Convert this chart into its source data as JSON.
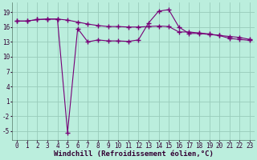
{
  "bg_color": "#bbeedd",
  "grid_color": "#99ccbb",
  "line_color": "#770077",
  "marker": "+",
  "marker_size": 4,
  "marker_lw": 1.0,
  "xlabel": "Windchill (Refroidissement éolien,°C)",
  "xlabel_fontsize": 6.5,
  "ytick_labels": [
    "-5",
    "-2",
    "1",
    "4",
    "7",
    "10",
    "13",
    "16",
    "19"
  ],
  "ytick_values": [
    -5,
    -2,
    1,
    4,
    7,
    10,
    13,
    16,
    19
  ],
  "xtick_values": [
    0,
    1,
    2,
    3,
    4,
    5,
    6,
    7,
    8,
    9,
    10,
    11,
    12,
    13,
    14,
    15,
    16,
    17,
    18,
    19,
    20,
    21,
    22,
    23
  ],
  "ylim": [
    -6.8,
    21.0
  ],
  "xlim": [
    -0.5,
    23.5
  ],
  "line1_x": [
    0,
    1,
    2,
    3,
    4,
    5,
    6,
    7,
    8,
    9,
    10,
    11,
    12,
    13,
    14,
    15,
    16,
    17,
    18,
    19,
    20,
    21,
    22,
    23
  ],
  "line1_y": [
    17.2,
    17.2,
    17.5,
    17.6,
    17.6,
    17.4,
    17.0,
    16.6,
    16.3,
    16.1,
    16.1,
    16.0,
    16.0,
    16.1,
    16.2,
    16.1,
    15.0,
    15.0,
    14.8,
    14.6,
    14.3,
    14.1,
    13.9,
    13.5
  ],
  "line2_x": [
    0,
    1,
    2,
    3,
    4,
    5,
    6,
    7,
    8,
    9,
    10,
    11,
    12,
    13,
    14,
    15,
    16,
    17,
    18,
    19,
    20,
    21,
    22,
    23
  ],
  "line2_y": [
    17.2,
    17.2,
    17.5,
    17.6,
    17.6,
    -5.3,
    15.7,
    13.0,
    13.4,
    13.2,
    13.2,
    13.1,
    13.4,
    16.8,
    19.2,
    19.5,
    16.0,
    14.7,
    14.7,
    14.5,
    14.3,
    13.7,
    13.5,
    13.3
  ],
  "tick_fontsize": 5.5,
  "tick_color": "#330033"
}
